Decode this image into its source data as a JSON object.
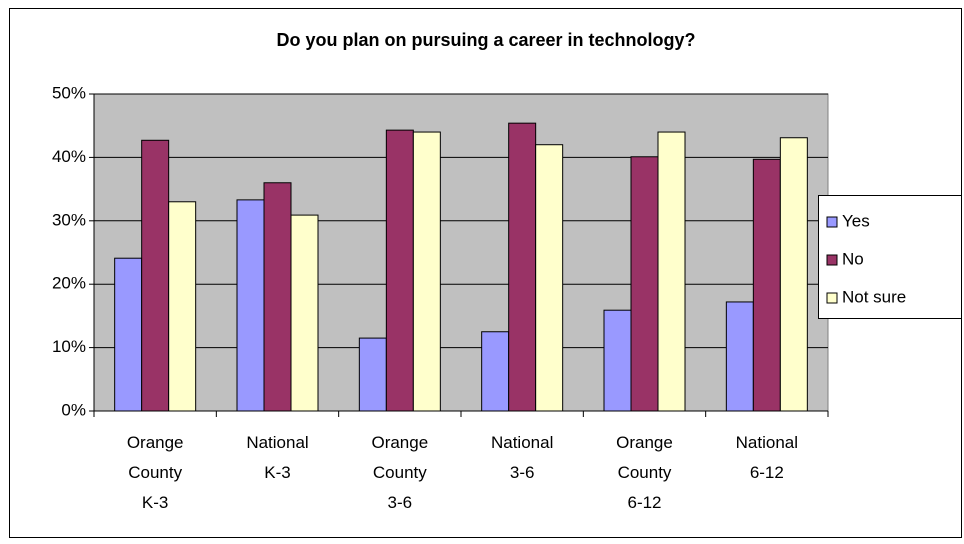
{
  "chart_data": {
    "type": "bar",
    "title": "Do you plan on pursuing a career in technology?",
    "categories": [
      [
        "Orange",
        "County",
        "K-3"
      ],
      [
        "National",
        "K-3"
      ],
      [
        "Orange",
        "County",
        "3-6"
      ],
      [
        "National",
        "3-6"
      ],
      [
        "Orange",
        "County",
        "6-12"
      ],
      [
        "National",
        "6-12"
      ]
    ],
    "series": [
      {
        "name": "Yes",
        "color": "#9999ff",
        "values": [
          24.1,
          33.3,
          11.5,
          12.5,
          15.9,
          17.2
        ]
      },
      {
        "name": "No",
        "color": "#993366",
        "values": [
          42.7,
          36.0,
          44.3,
          45.4,
          40.1,
          39.7
        ]
      },
      {
        "name": "Not sure",
        "color": "#ffffcc",
        "values": [
          33.0,
          30.9,
          44.0,
          42.0,
          44.0,
          43.1
        ]
      }
    ],
    "ylim": [
      0,
      50
    ],
    "yticks": [
      {
        "value": 0,
        "label": "0%"
      },
      {
        "value": 10,
        "label": "10%"
      },
      {
        "value": 20,
        "label": "20%"
      },
      {
        "value": 30,
        "label": "30%"
      },
      {
        "value": 40,
        "label": "40%"
      },
      {
        "value": 50,
        "label": "50%"
      }
    ],
    "grid": true,
    "plot_background": "#c0c0c0",
    "legend": "right"
  }
}
